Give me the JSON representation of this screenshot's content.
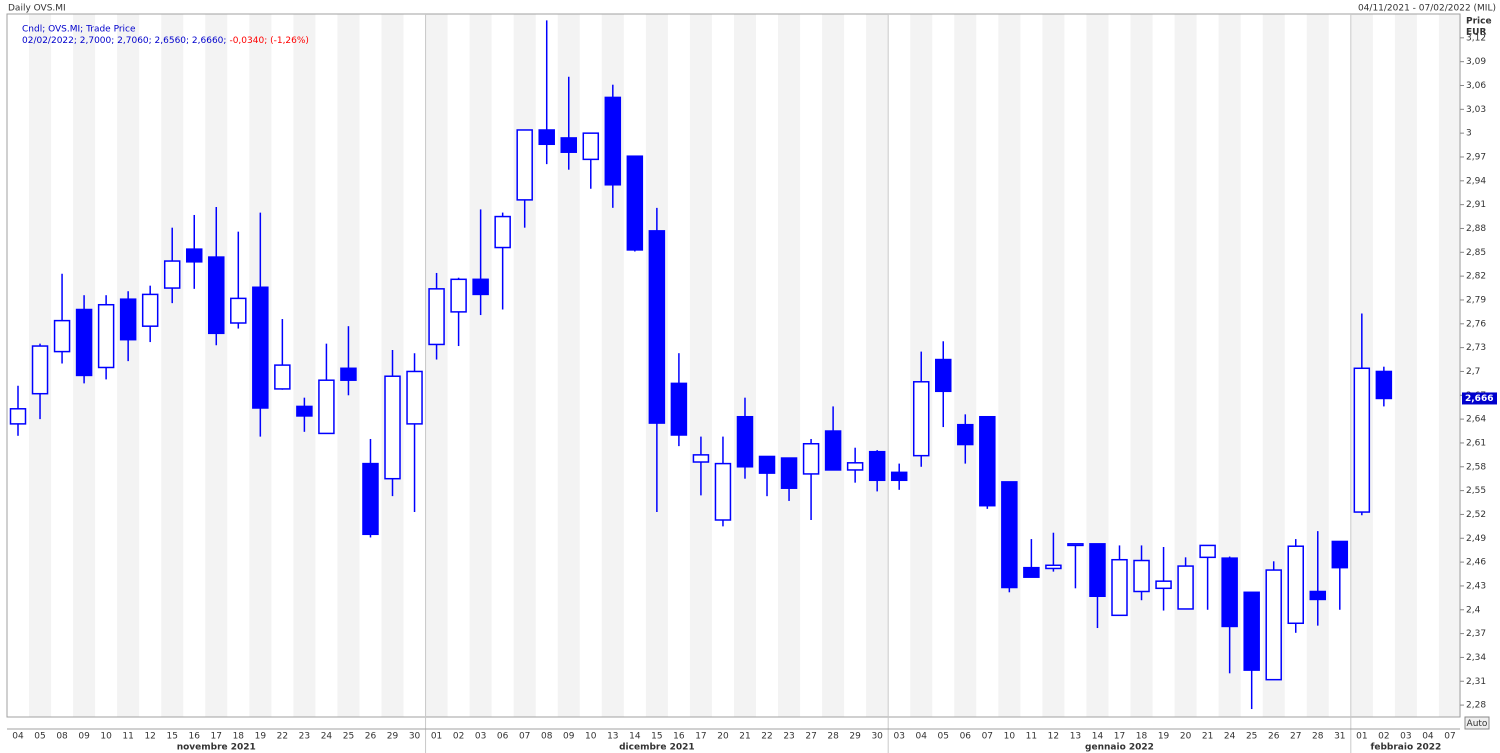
{
  "chart_data": {
    "type": "candlestick",
    "title": "Daily OVS.MI",
    "date_range": "04/11/2021 - 07/02/2022 (MIL)",
    "legend_name": "Cndl; OVS.MI; Trade Price",
    "legend_values": "02/02/2022; 2,7000; 2,7060; 2,6560; 2,6660;",
    "legend_change": "-0,0340; (-1,26%)",
    "y_axis_title": "Price",
    "y_axis_unit": "EUR",
    "last_price_label": "2,666",
    "auto_button": "Auto",
    "color": "#0000ff",
    "change_color": "#ff0000",
    "months": [
      "novembre 2021",
      "dicembre 2021",
      "gennaio 2022",
      "febbraio 2022"
    ],
    "categories": [
      "04",
      "05",
      "08",
      "09",
      "10",
      "11",
      "12",
      "15",
      "16",
      "17",
      "18",
      "19",
      "22",
      "23",
      "24",
      "25",
      "26",
      "29",
      "30",
      "01",
      "02",
      "03",
      "06",
      "07",
      "08",
      "09",
      "10",
      "13",
      "14",
      "15",
      "16",
      "17",
      "20",
      "21",
      "22",
      "23",
      "27",
      "28",
      "29",
      "30",
      "03",
      "04",
      "05",
      "06",
      "07",
      "10",
      "11",
      "12",
      "13",
      "14",
      "17",
      "18",
      "19",
      "20",
      "21",
      "24",
      "25",
      "26",
      "27",
      "28",
      "31",
      "01",
      "02",
      "03",
      "04",
      "07"
    ],
    "open": [
      2.634,
      2.672,
      2.725,
      2.778,
      2.705,
      2.791,
      2.757,
      2.805,
      2.854,
      2.844,
      2.761,
      2.806,
      2.678,
      2.656,
      2.622,
      2.704,
      2.584,
      2.565,
      2.634,
      2.734,
      2.775,
      2.816,
      2.856,
      2.916,
      3.004,
      2.994,
      2.967,
      3.045,
      2.971,
      2.877,
      2.685,
      2.586,
      2.513,
      2.643,
      2.593,
      2.591,
      2.571,
      2.625,
      2.576,
      2.599,
      2.573,
      2.594,
      2.715,
      2.633,
      2.643,
      2.561,
      2.453,
      2.452,
      2.481,
      2.483,
      2.393,
      2.423,
      2.427,
      2.401,
      2.466,
      2.465,
      2.422,
      2.312,
      2.383,
      2.423,
      2.486,
      2.523,
      2.7,
      null,
      null,
      null
    ],
    "high": [
      2.682,
      2.735,
      2.823,
      2.796,
      2.796,
      2.801,
      2.808,
      2.881,
      2.897,
      2.907,
      2.876,
      2.9,
      2.766,
      2.667,
      2.735,
      2.757,
      2.615,
      2.727,
      2.723,
      2.824,
      2.818,
      2.904,
      2.9,
      3.004,
      3.142,
      3.071,
      3.0,
      3.061,
      2.971,
      2.906,
      2.723,
      2.618,
      2.618,
      2.667,
      2.593,
      2.591,
      2.615,
      2.656,
      2.604,
      2.601,
      2.584,
      2.725,
      2.738,
      2.646,
      2.643,
      2.561,
      2.489,
      2.497,
      2.483,
      2.483,
      2.481,
      2.481,
      2.479,
      2.466,
      2.481,
      2.467,
      2.422,
      2.461,
      2.489,
      2.499,
      2.486,
      2.773,
      2.706,
      null,
      null,
      null
    ],
    "low": [
      2.619,
      2.64,
      2.71,
      2.685,
      2.69,
      2.713,
      2.737,
      2.786,
      2.804,
      2.733,
      2.754,
      2.618,
      2.677,
      2.624,
      2.622,
      2.67,
      2.491,
      2.543,
      2.523,
      2.715,
      2.732,
      2.771,
      2.778,
      2.881,
      2.961,
      2.954,
      2.93,
      2.906,
      2.851,
      2.523,
      2.606,
      2.544,
      2.505,
      2.565,
      2.543,
      2.537,
      2.513,
      2.576,
      2.56,
      2.549,
      2.551,
      2.58,
      2.63,
      2.584,
      2.527,
      2.422,
      2.441,
      2.448,
      2.427,
      2.377,
      2.393,
      2.412,
      2.399,
      2.401,
      2.4,
      2.32,
      2.275,
      2.312,
      2.371,
      2.38,
      2.4,
      2.519,
      2.656,
      null,
      null,
      null
    ],
    "close": [
      2.653,
      2.732,
      2.764,
      2.695,
      2.784,
      2.74,
      2.797,
      2.839,
      2.838,
      2.748,
      2.792,
      2.654,
      2.708,
      2.644,
      2.689,
      2.689,
      2.495,
      2.694,
      2.7,
      2.804,
      2.816,
      2.797,
      2.895,
      3.004,
      2.986,
      2.976,
      3.0,
      2.935,
      2.853,
      2.635,
      2.62,
      2.595,
      2.584,
      2.58,
      2.572,
      2.553,
      2.609,
      2.576,
      2.585,
      2.563,
      2.563,
      2.687,
      2.675,
      2.608,
      2.531,
      2.428,
      2.441,
      2.456,
      2.483,
      2.417,
      2.463,
      2.462,
      2.436,
      2.455,
      2.481,
      2.379,
      2.324,
      2.45,
      2.48,
      2.413,
      2.453,
      2.704,
      2.666,
      null,
      null,
      null
    ],
    "ylim": [
      2.265,
      3.15
    ],
    "yticks": [
      {
        "value": 2.28,
        "label": "2,28"
      },
      {
        "value": 2.31,
        "label": "2,31"
      },
      {
        "value": 2.34,
        "label": "2,34"
      },
      {
        "value": 2.37,
        "label": "2,37"
      },
      {
        "value": 2.4,
        "label": "2,4"
      },
      {
        "value": 2.43,
        "label": "2,43"
      },
      {
        "value": 2.46,
        "label": "2,46"
      },
      {
        "value": 2.49,
        "label": "2,49"
      },
      {
        "value": 2.52,
        "label": "2,52"
      },
      {
        "value": 2.55,
        "label": "2,55"
      },
      {
        "value": 2.58,
        "label": "2,58"
      },
      {
        "value": 2.61,
        "label": "2,61"
      },
      {
        "value": 2.64,
        "label": "2,64"
      },
      {
        "value": 2.67,
        "label": "2,67"
      },
      {
        "value": 2.7,
        "label": "2,7"
      },
      {
        "value": 2.73,
        "label": "2,73"
      },
      {
        "value": 2.76,
        "label": "2,76"
      },
      {
        "value": 2.79,
        "label": "2,79"
      },
      {
        "value": 2.82,
        "label": "2,82"
      },
      {
        "value": 2.85,
        "label": "2,85"
      },
      {
        "value": 2.88,
        "label": "2,88"
      },
      {
        "value": 2.91,
        "label": "2,91"
      },
      {
        "value": 2.94,
        "label": "2,94"
      },
      {
        "value": 2.97,
        "label": "2,97"
      },
      3,
      {
        "value": 3.03,
        "label": "3,03"
      },
      {
        "value": 3.06,
        "label": "3,06"
      },
      {
        "value": 3.09,
        "label": "3,09"
      },
      {
        "value": 3.12,
        "label": "3,12"
      }
    ]
  }
}
